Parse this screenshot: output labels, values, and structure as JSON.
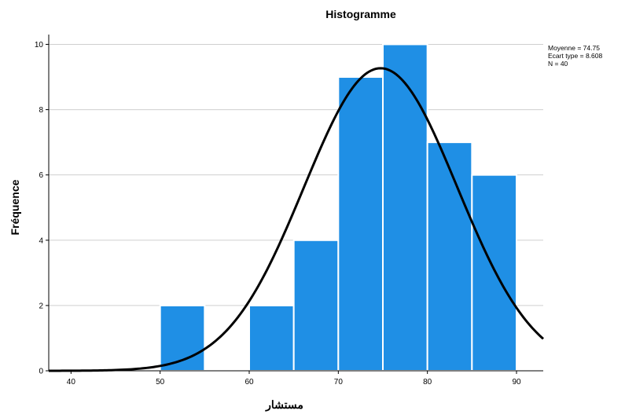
{
  "chart_data": {
    "type": "bar",
    "title": "Histogramme",
    "xlabel": "مستشار",
    "ylabel": "Fréquence",
    "x_ticks": [
      40,
      50,
      60,
      70,
      80,
      90
    ],
    "y_ticks": [
      0,
      2,
      4,
      6,
      8,
      10
    ],
    "xlim": [
      37.5,
      93
    ],
    "ylim": [
      0,
      10.3
    ],
    "grid": "horizontal",
    "bar_color": "#1f8fe5",
    "bins": [
      {
        "start": 50,
        "end": 55,
        "value": 2
      },
      {
        "start": 60,
        "end": 65,
        "value": 2
      },
      {
        "start": 65,
        "end": 70,
        "value": 4
      },
      {
        "start": 70,
        "end": 75,
        "value": 9
      },
      {
        "start": 75,
        "end": 80,
        "value": 10
      },
      {
        "start": 80,
        "end": 85,
        "value": 7
      },
      {
        "start": 85,
        "end": 90,
        "value": 6
      }
    ],
    "normal_curve": {
      "mean": 74.75,
      "sd": 8.608,
      "n": 40,
      "bin_width": 5
    },
    "stats_text": [
      "Moyenne = 74.75",
      "Ecart type = 8.608",
      "N = 40"
    ]
  }
}
